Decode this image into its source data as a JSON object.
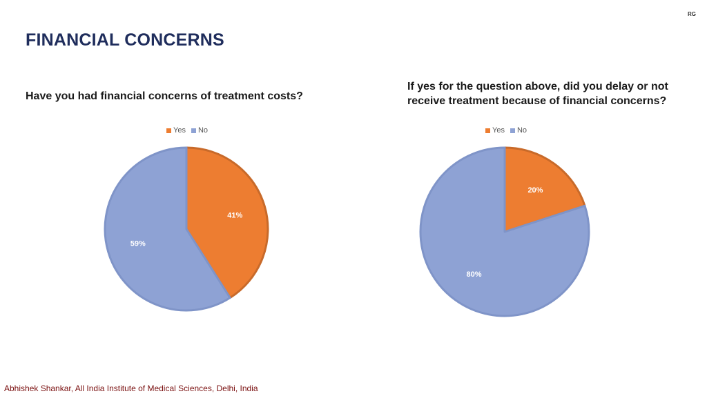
{
  "slide": {
    "corner_tag": "RG",
    "title": "FINANCIAL CONCERNS",
    "footer": "Abhishek Shankar, All India Institute of Medical Sciences, Delhi, India"
  },
  "colors": {
    "yes": "#ed7d31",
    "no": "#8ea2d4",
    "edge_yes": "#c86a2a",
    "edge_no": "#7f94c8"
  },
  "chart_data": [
    {
      "type": "pie",
      "title": "Have you had financial concerns of treatment costs?",
      "legend": [
        "Yes",
        "No"
      ],
      "slices": [
        {
          "label": "Yes",
          "value": 41,
          "display": "41%"
        },
        {
          "label": "No",
          "value": 59,
          "display": "59%"
        }
      ]
    },
    {
      "type": "pie",
      "title": "If yes for the question above, did you delay or not receive treatment because of financial concerns?",
      "legend": [
        "Yes",
        "No"
      ],
      "slices": [
        {
          "label": "Yes",
          "value": 20,
          "display": "20%"
        },
        {
          "label": "No",
          "value": 80,
          "display": "80%"
        }
      ]
    }
  ]
}
